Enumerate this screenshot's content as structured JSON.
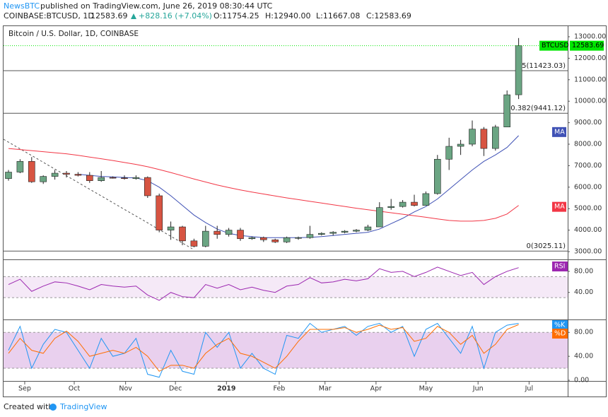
{
  "header": {
    "author": "NewsBTC",
    "published": "published on TradingView.com, June 26, 2019 08:30:44 UTC",
    "symbol": "COINBASE:BTCUSD, 1D",
    "last": "12583.69",
    "change": "+828.16 (+7.04%)",
    "ohlc": [
      "O:11754.25",
      "H:12940.00",
      "L:11667.08",
      "C:12583.69"
    ]
  },
  "footer": {
    "prefix": "Created with",
    "brand": "TradingView"
  },
  "chart_data": {
    "type": "candlestick",
    "title": "Bitcoin / U.S. Dollar, 1D, COINBASE",
    "up_color": "#6ba583",
    "down_color": "#d75442",
    "open": [
      6400,
      6700,
      7200,
      6250,
      6500,
      6650,
      6600,
      6550,
      6300,
      6450,
      6430,
      6400,
      6450,
      5600,
      4000,
      4150,
      3500,
      3250,
      3950,
      3800,
      4000,
      3600,
      3650,
      3550,
      3450,
      3650,
      3650,
      3800,
      3850,
      3900,
      3950,
      4000,
      4150,
      5050,
      5100,
      5300,
      5150,
      5700,
      7300,
      7900,
      8000,
      8700,
      7800,
      8800,
      10300
    ],
    "high": [
      6800,
      7300,
      7400,
      6550,
      6800,
      6750,
      6700,
      6700,
      6750,
      6500,
      6550,
      6550,
      6500,
      5700,
      4400,
      4200,
      3600,
      4200,
      4200,
      4100,
      4100,
      3700,
      3700,
      3600,
      3700,
      3700,
      4200,
      3900,
      3950,
      4000,
      4050,
      4250,
      5300,
      5450,
      5400,
      5650,
      5800,
      7500,
      8300,
      8200,
      9100,
      8800,
      8900,
      10500,
      12940
    ],
    "low": [
      6300,
      6650,
      6200,
      6150,
      6350,
      6450,
      6500,
      6200,
      6250,
      6400,
      6350,
      6350,
      5500,
      3900,
      3550,
      3300,
      3200,
      3200,
      3600,
      3700,
      3500,
      3550,
      3450,
      3400,
      3400,
      3550,
      3600,
      3750,
      3750,
      3850,
      3900,
      3950,
      4150,
      4950,
      5050,
      5100,
      5150,
      5650,
      6800,
      7500,
      7900,
      7450,
      7700,
      8800,
      10100
    ],
    "close": [
      6700,
      7200,
      6250,
      6500,
      6650,
      6600,
      6550,
      6300,
      6450,
      6430,
      6400,
      6450,
      5600,
      4000,
      4150,
      3500,
      3250,
      3950,
      3800,
      4000,
      3600,
      3650,
      3550,
      3450,
      3650,
      3650,
      3800,
      3850,
      3900,
      3950,
      4000,
      4150,
      5050,
      5100,
      5300,
      5150,
      5700,
      7300,
      7900,
      8000,
      8700,
      7800,
      8800,
      10300,
      12583.69
    ],
    "ma_series": [
      {
        "name": "MA",
        "color": "#3f51b5",
        "values": [
          null,
          null,
          null,
          null,
          null,
          null,
          6600,
          6550,
          6500,
          6480,
          6450,
          6430,
          6300,
          6000,
          5600,
          5150,
          4700,
          4350,
          4050,
          3850,
          3750,
          3700,
          3650,
          3650,
          3650,
          3650,
          3660,
          3700,
          3750,
          3800,
          3850,
          3900,
          4050,
          4300,
          4550,
          4850,
          5100,
          5450,
          5900,
          6350,
          6800,
          7200,
          7500,
          7850,
          8400
        ]
      },
      {
        "name": "MA",
        "color": "#f23645",
        "values": [
          7800,
          7750,
          7700,
          7650,
          7600,
          7550,
          7480,
          7400,
          7320,
          7240,
          7150,
          7060,
          6950,
          6820,
          6680,
          6530,
          6380,
          6240,
          6100,
          5980,
          5870,
          5770,
          5680,
          5590,
          5500,
          5420,
          5340,
          5260,
          5180,
          5100,
          5020,
          4950,
          4880,
          4810,
          4740,
          4670,
          4600,
          4520,
          4450,
          4420,
          4420,
          4450,
          4550,
          4750,
          5150
        ]
      }
    ],
    "ylim": [
      3000,
      13000
    ],
    "yticks": [
      {
        "value": 3000,
        "label": "3000.00"
      },
      {
        "value": 4000,
        "label": "4000.00"
      },
      {
        "value": 5000,
        "label": "5000.00"
      },
      {
        "value": 6000,
        "label": "6000.00"
      },
      {
        "value": 7000,
        "label": "7000.00"
      },
      {
        "value": 8000,
        "label": "8000.00"
      },
      {
        "value": 9000,
        "label": "9000.00"
      },
      {
        "value": 10000,
        "label": "10000.00"
      },
      {
        "value": 11000,
        "label": "11000.00"
      },
      {
        "value": 12000,
        "label": "12000.00"
      },
      {
        "value": 13000,
        "label": "13000.00"
      }
    ],
    "price_tag": {
      "name": "BTCUSD",
      "value": 12583.69,
      "label": "12583.69",
      "color": "#00e600"
    },
    "fib_levels": [
      {
        "value": 11423.03,
        "label": "0.5(11423.03)"
      },
      {
        "value": 9441.12,
        "label": "0.382(9441.12)"
      },
      {
        "value": 3025.11,
        "label": "0(3025.11)"
      }
    ],
    "xticks": [
      {
        "value": 1.4,
        "label": "Sep"
      },
      {
        "value": 5.67,
        "label": "Oct"
      },
      {
        "value": 10.1,
        "label": "Nov"
      },
      {
        "value": 14.4,
        "label": "Dec"
      },
      {
        "value": 18.8,
        "label": "2019"
      },
      {
        "value": 23.35,
        "label": "Feb"
      },
      {
        "value": 27.3,
        "label": "Mar"
      },
      {
        "value": 31.7,
        "label": "Apr"
      },
      {
        "value": 36.0,
        "label": "May"
      },
      {
        "value": 40.5,
        "label": "Jun"
      },
      {
        "value": 44.9,
        "label": "Jul"
      }
    ],
    "rsi": {
      "name": "RSI",
      "color": "#9c27b0",
      "band": [
        70,
        30
      ],
      "ylim": [
        -10,
        100
      ],
      "yticks": [
        {
          "value": 80,
          "label": "80.00"
        },
        {
          "value": 40,
          "label": "40.00"
        }
      ],
      "values": [
        55,
        65,
        42,
        52,
        60,
        58,
        52,
        45,
        55,
        52,
        50,
        52,
        35,
        25,
        40,
        32,
        30,
        55,
        48,
        55,
        45,
        50,
        44,
        40,
        52,
        55,
        68,
        58,
        60,
        65,
        62,
        66,
        85,
        78,
        80,
        70,
        78,
        88,
        80,
        72,
        78,
        55,
        70,
        80,
        87
      ]
    },
    "stoch": {
      "band": [
        80,
        20
      ],
      "ylim": [
        0,
        98
      ],
      "yticks": [
        {
          "value": 80,
          "label": "80.00"
        },
        {
          "value": 40,
          "label": "40.00"
        },
        {
          "value": 0,
          "label": "0.00"
        }
      ],
      "series": [
        {
          "name": "%K",
          "color": "#2196f3",
          "values": [
            50,
            90,
            20,
            60,
            85,
            80,
            50,
            20,
            70,
            40,
            45,
            70,
            10,
            5,
            50,
            15,
            10,
            80,
            55,
            80,
            20,
            45,
            20,
            10,
            75,
            70,
            95,
            80,
            85,
            90,
            75,
            90,
            95,
            80,
            90,
            40,
            85,
            95,
            70,
            45,
            90,
            20,
            80,
            92,
            95
          ]
        },
        {
          "name": "%D",
          "color": "#ff6d00",
          "values": [
            45,
            70,
            50,
            45,
            70,
            82,
            65,
            40,
            45,
            50,
            45,
            55,
            40,
            15,
            25,
            25,
            20,
            45,
            60,
            70,
            45,
            40,
            30,
            20,
            40,
            65,
            85,
            85,
            85,
            88,
            80,
            85,
            92,
            85,
            88,
            65,
            70,
            90,
            80,
            60,
            75,
            45,
            60,
            85,
            93
          ]
        }
      ]
    }
  }
}
